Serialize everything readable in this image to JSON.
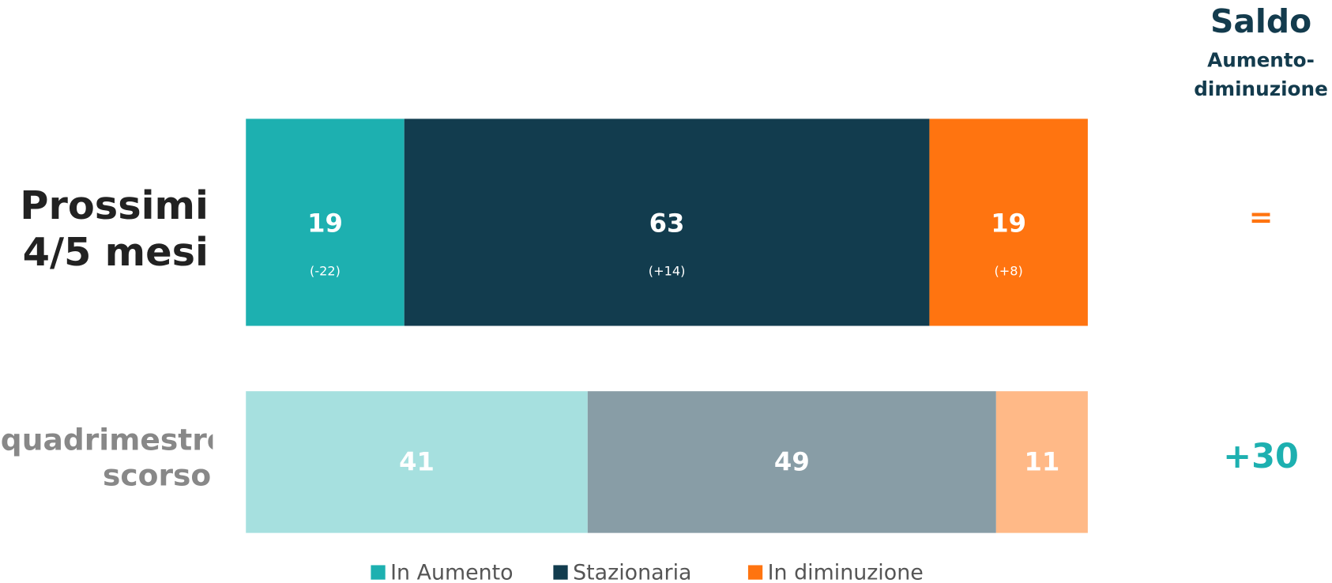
{
  "chart_data": {
    "type": "stacked_bar_horizontal",
    "categories": [
      "Prossimi 4/5 mesi",
      "quadrimestre scorso"
    ],
    "category_colors": [
      "#222222",
      "#888888"
    ],
    "xlim": [
      0,
      101
    ],
    "series": [
      {
        "name": "In Aumento",
        "color": "#1db0b0",
        "colors": [
          "#1db0b0",
          "#a6e0df"
        ],
        "values": [
          19,
          41
        ],
        "change_labels": [
          "(-22)"
        ]
      },
      {
        "name": "Stazionaria",
        "color": "#123c4e",
        "colors": [
          "#123c4e",
          "#889da6"
        ],
        "values": [
          63,
          49
        ],
        "change_labels": [
          "(+14)"
        ]
      },
      {
        "name": "In diminuzione",
        "color": "#ff7410",
        "colors": [
          "#ff7410",
          "#ffb987"
        ],
        "values": [
          19,
          11
        ],
        "change_labels": [
          "(+8)"
        ]
      }
    ],
    "balance_title": "Saldo",
    "balance_subtitle": [
      "Aumento-",
      "diminuzione"
    ],
    "balance_labels": [
      "=",
      "+30"
    ],
    "balance_colors": [
      "#ff7410",
      "#1db0b0"
    ]
  }
}
